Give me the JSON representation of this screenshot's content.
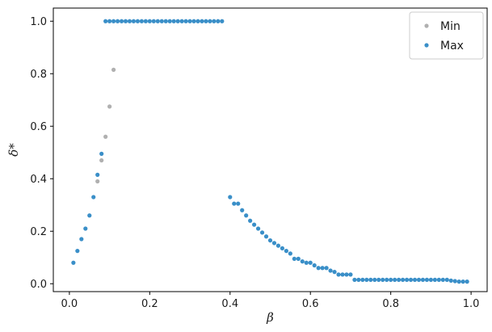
{
  "chart_data": {
    "type": "scatter",
    "title": "",
    "xlabel": "β",
    "ylabel": "δ*",
    "xlim": [
      -0.04,
      1.04
    ],
    "ylim": [
      -0.03,
      1.05
    ],
    "xticks": [
      0.0,
      0.2,
      0.4,
      0.6,
      0.8,
      1.0
    ],
    "xtick_labels": [
      "0.0",
      "0.2",
      "0.4",
      "0.6",
      "0.8",
      "1.0"
    ],
    "yticks": [
      0.0,
      0.2,
      0.4,
      0.6,
      0.8,
      1.0
    ],
    "ytick_labels": [
      "0.0",
      "0.2",
      "0.4",
      "0.6",
      "0.8",
      "1.0"
    ],
    "grid": false,
    "legend": {
      "position": "top-right"
    },
    "series": [
      {
        "name": "Min",
        "color": "#b0b0b0",
        "points": [
          [
            0.07,
            0.39
          ],
          [
            0.08,
            0.47
          ],
          [
            0.09,
            0.56
          ],
          [
            0.1,
            0.675
          ],
          [
            0.11,
            0.815
          ]
        ]
      },
      {
        "name": "Max",
        "color": "#3a8fc8",
        "points": [
          [
            0.01,
            0.08
          ],
          [
            0.02,
            0.125
          ],
          [
            0.03,
            0.17
          ],
          [
            0.04,
            0.21
          ],
          [
            0.05,
            0.26
          ],
          [
            0.06,
            0.33
          ],
          [
            0.07,
            0.415
          ],
          [
            0.08,
            0.495
          ],
          [
            0.09,
            1.0
          ],
          [
            0.1,
            1.0
          ],
          [
            0.11,
            1.0
          ],
          [
            0.12,
            1.0
          ],
          [
            0.13,
            1.0
          ],
          [
            0.14,
            1.0
          ],
          [
            0.15,
            1.0
          ],
          [
            0.16,
            1.0
          ],
          [
            0.17,
            1.0
          ],
          [
            0.18,
            1.0
          ],
          [
            0.19,
            1.0
          ],
          [
            0.2,
            1.0
          ],
          [
            0.21,
            1.0
          ],
          [
            0.22,
            1.0
          ],
          [
            0.23,
            1.0
          ],
          [
            0.24,
            1.0
          ],
          [
            0.25,
            1.0
          ],
          [
            0.26,
            1.0
          ],
          [
            0.27,
            1.0
          ],
          [
            0.28,
            1.0
          ],
          [
            0.29,
            1.0
          ],
          [
            0.3,
            1.0
          ],
          [
            0.31,
            1.0
          ],
          [
            0.32,
            1.0
          ],
          [
            0.33,
            1.0
          ],
          [
            0.34,
            1.0
          ],
          [
            0.35,
            1.0
          ],
          [
            0.36,
            1.0
          ],
          [
            0.37,
            1.0
          ],
          [
            0.38,
            1.0
          ],
          [
            0.4,
            0.33
          ],
          [
            0.41,
            0.305
          ],
          [
            0.42,
            0.305
          ],
          [
            0.43,
            0.28
          ],
          [
            0.44,
            0.26
          ],
          [
            0.45,
            0.24
          ],
          [
            0.46,
            0.225
          ],
          [
            0.47,
            0.21
          ],
          [
            0.48,
            0.195
          ],
          [
            0.49,
            0.18
          ],
          [
            0.5,
            0.165
          ],
          [
            0.51,
            0.155
          ],
          [
            0.52,
            0.145
          ],
          [
            0.53,
            0.135
          ],
          [
            0.54,
            0.125
          ],
          [
            0.55,
            0.115
          ],
          [
            0.56,
            0.095
          ],
          [
            0.57,
            0.095
          ],
          [
            0.58,
            0.085
          ],
          [
            0.59,
            0.08
          ],
          [
            0.6,
            0.08
          ],
          [
            0.61,
            0.07
          ],
          [
            0.62,
            0.06
          ],
          [
            0.63,
            0.06
          ],
          [
            0.64,
            0.06
          ],
          [
            0.65,
            0.05
          ],
          [
            0.66,
            0.045
          ],
          [
            0.67,
            0.035
          ],
          [
            0.68,
            0.035
          ],
          [
            0.69,
            0.035
          ],
          [
            0.7,
            0.035
          ],
          [
            0.71,
            0.015
          ],
          [
            0.72,
            0.015
          ],
          [
            0.73,
            0.015
          ],
          [
            0.74,
            0.015
          ],
          [
            0.75,
            0.015
          ],
          [
            0.76,
            0.015
          ],
          [
            0.77,
            0.015
          ],
          [
            0.78,
            0.015
          ],
          [
            0.79,
            0.015
          ],
          [
            0.8,
            0.015
          ],
          [
            0.81,
            0.015
          ],
          [
            0.82,
            0.015
          ],
          [
            0.83,
            0.015
          ],
          [
            0.84,
            0.015
          ],
          [
            0.85,
            0.015
          ],
          [
            0.86,
            0.015
          ],
          [
            0.87,
            0.015
          ],
          [
            0.88,
            0.015
          ],
          [
            0.89,
            0.015
          ],
          [
            0.9,
            0.015
          ],
          [
            0.91,
            0.015
          ],
          [
            0.92,
            0.015
          ],
          [
            0.93,
            0.015
          ],
          [
            0.94,
            0.015
          ],
          [
            0.95,
            0.012
          ],
          [
            0.96,
            0.01
          ],
          [
            0.97,
            0.008
          ],
          [
            0.98,
            0.008
          ],
          [
            0.99,
            0.008
          ]
        ]
      }
    ]
  }
}
